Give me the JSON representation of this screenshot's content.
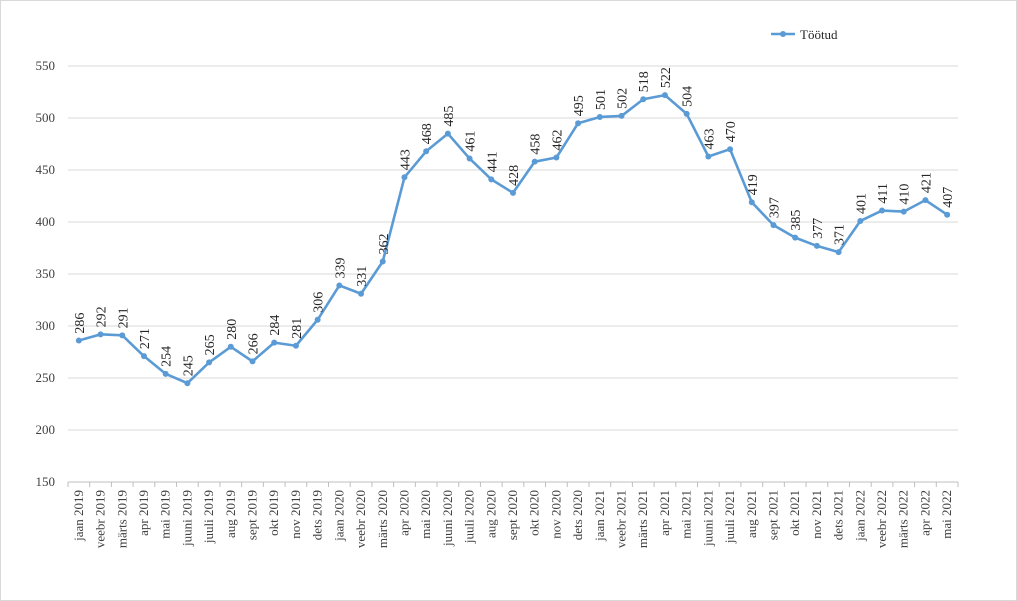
{
  "chart_data": {
    "type": "line",
    "title": "",
    "xlabel": "",
    "ylabel": "",
    "ylim": [
      150,
      550
    ],
    "ytick_step": 50,
    "grid": true,
    "legend_position": "top-right",
    "line_color": "#5B9BD5",
    "categories": [
      "jaan 2019",
      "veebr 2019",
      "märts 2019",
      "apr 2019",
      "mai 2019",
      "juuni 2019",
      "juuli 2019",
      "aug 2019",
      "sept 2019",
      "okt 2019",
      "nov 2019",
      "dets 2019",
      "jaan 2020",
      "veebr 2020",
      "märts 2020",
      "apr 2020",
      "mai 2020",
      "juuni 2020",
      "juuli 2020",
      "aug 2020",
      "sept 2020",
      "okt 2020",
      "nov 2020",
      "dets 2020",
      "jaan 2021",
      "veebr 2021",
      "märts 2021",
      "apr 2021",
      "mai 2021",
      "juuni 2021",
      "juuli 2021",
      "aug 2021",
      "sept 2021",
      "okt 2021",
      "nov 2021",
      "dets 2021",
      "jaan 2022",
      "veebr 2022",
      "märts 2022",
      "apr 2022",
      "mai 2022"
    ],
    "series": [
      {
        "name": "Töötud",
        "values": [
          286,
          292,
          291,
          271,
          254,
          245,
          265,
          280,
          266,
          284,
          281,
          306,
          339,
          331,
          362,
          443,
          468,
          485,
          461,
          441,
          428,
          458,
          462,
          495,
          501,
          502,
          518,
          522,
          504,
          463,
          470,
          419,
          397,
          385,
          377,
          371,
          401,
          411,
          410,
          421,
          407
        ]
      }
    ]
  }
}
